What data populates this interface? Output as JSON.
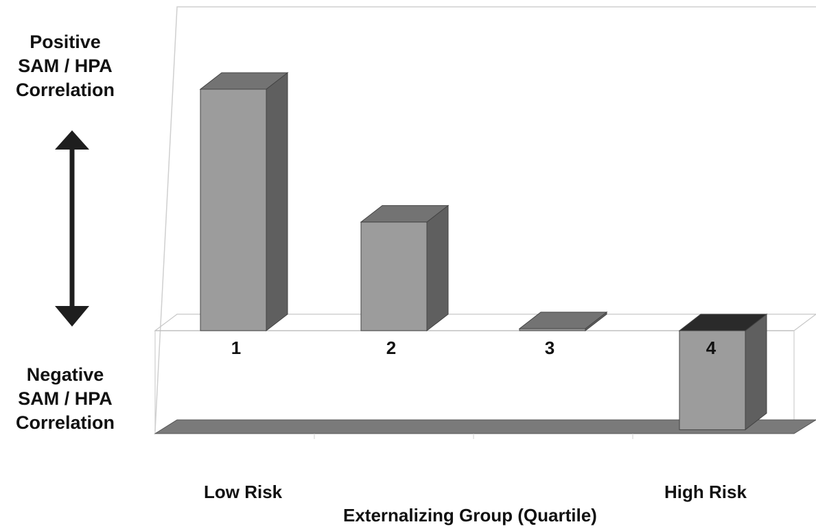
{
  "chart_data": {
    "type": "bar",
    "categories": [
      "1",
      "2",
      "3",
      "4"
    ],
    "values": [
      1.0,
      0.45,
      0.0,
      -0.41
    ],
    "ylim": [
      -0.45,
      1.0
    ],
    "y_label_top": [
      "Positive",
      "SAM / HPA",
      "Correlation"
    ],
    "y_label_bottom": [
      "Negative",
      "SAM / HPA",
      "Correlation"
    ],
    "x_end_labels": [
      "Low Risk",
      "High Risk"
    ],
    "xlabel": "Externalizing Group (Quartile)",
    "style": "3d-bar",
    "grid": false,
    "colors": {
      "front": "#9c9c9c",
      "side": "#5f5f5f",
      "top": "#737373",
      "floor": "#7a7a7a"
    }
  }
}
